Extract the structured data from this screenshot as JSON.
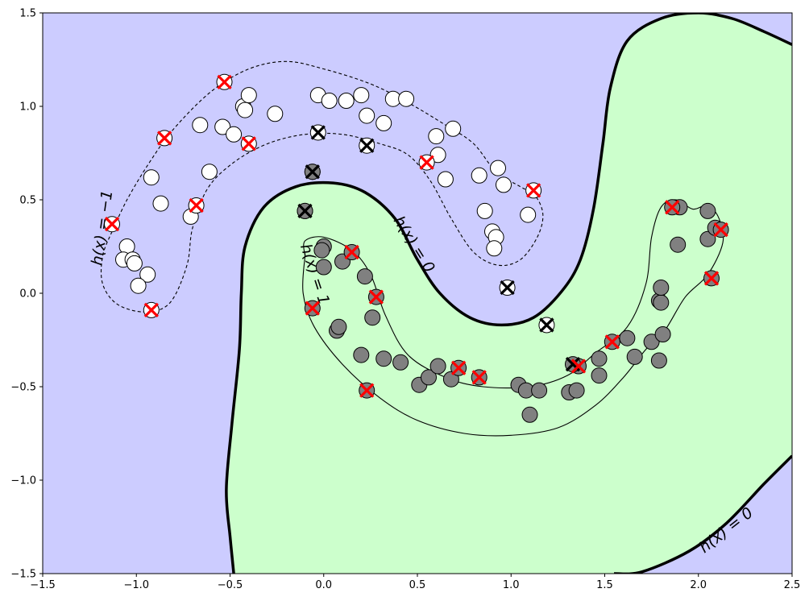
{
  "chart_data": {
    "type": "scatter",
    "title": "",
    "xlabel": "",
    "ylabel": "",
    "xlim": [
      -1.5,
      2.5
    ],
    "ylim": [
      -1.5,
      1.5
    ],
    "grid": false,
    "x_ticks": [
      "−1.5",
      "−1.0",
      "−0.5",
      "0.0",
      "0.5",
      "1.0",
      "1.5",
      "2.0",
      "2.5"
    ],
    "y_ticks": [
      "−1.5",
      "−1.0",
      "−0.5",
      "0.0",
      "0.5",
      "1.0",
      "1.5"
    ],
    "x_tick_values": [
      -1.5,
      -1.0,
      -0.5,
      0.0,
      0.5,
      1.0,
      1.5,
      2.0,
      2.5
    ],
    "y_tick_values": [
      -1.5,
      -1.0,
      -0.5,
      0.0,
      0.5,
      1.0,
      1.5
    ],
    "colors": {
      "region_negative": "#ccccff",
      "region_positive": "#ccffcc",
      "class_negative": "#ffffff",
      "class_positive": "#808080",
      "misclassified_marker": "#ff0000",
      "support_marker": "#000000"
    },
    "contour_labels": [
      {
        "text": "h(x) = 0",
        "x": 0.48,
        "y": 0.26,
        "rotation": 58
      },
      {
        "text": "h(x) = 0",
        "x": 2.15,
        "y": -1.27,
        "rotation": -38
      },
      {
        "text": "h(x) = −1",
        "x": -1.18,
        "y": 0.35,
        "rotation": -82
      },
      {
        "text": "h(x) = 1",
        "x": -0.05,
        "y": 0.1,
        "rotation": 72
      }
    ],
    "boundaries": {
      "decision_upper": [
        [
          -0.48,
          -1.5
        ],
        [
          -0.5,
          -1.3
        ],
        [
          -0.52,
          -1.05
        ],
        [
          -0.49,
          -0.7
        ],
        [
          -0.45,
          -0.3
        ],
        [
          -0.44,
          0.0
        ],
        [
          -0.42,
          0.25
        ],
        [
          -0.32,
          0.46
        ],
        [
          -0.15,
          0.57
        ],
        [
          0.05,
          0.59
        ],
        [
          0.22,
          0.54
        ],
        [
          0.38,
          0.4
        ],
        [
          0.5,
          0.18
        ],
        [
          0.62,
          0.0
        ],
        [
          0.78,
          -0.13
        ],
        [
          0.95,
          -0.17
        ],
        [
          1.12,
          -0.13
        ],
        [
          1.27,
          0.01
        ],
        [
          1.37,
          0.18
        ],
        [
          1.44,
          0.45
        ],
        [
          1.49,
          0.8
        ],
        [
          1.53,
          1.1
        ],
        [
          1.62,
          1.35
        ],
        [
          1.8,
          1.47
        ],
        [
          2.0,
          1.5
        ],
        [
          2.18,
          1.47
        ],
        [
          2.35,
          1.4
        ],
        [
          2.5,
          1.33
        ]
      ],
      "decision_lower": [
        [
          2.5,
          -0.87
        ],
        [
          2.35,
          -1.02
        ],
        [
          2.15,
          -1.23
        ],
        [
          1.95,
          -1.38
        ],
        [
          1.7,
          -1.49
        ],
        [
          1.55,
          -1.5
        ]
      ],
      "margin_neg": [
        [
          -1.13,
          0.33
        ],
        [
          -1.18,
          0.2
        ],
        [
          -1.18,
          0.05
        ],
        [
          -1.1,
          -0.06
        ],
        [
          -0.95,
          -0.1
        ],
        [
          -0.82,
          -0.05
        ],
        [
          -0.73,
          0.15
        ],
        [
          -0.7,
          0.35
        ],
        [
          -0.62,
          0.56
        ],
        [
          -0.48,
          0.7
        ],
        [
          -0.3,
          0.8
        ],
        [
          -0.1,
          0.85
        ],
        [
          0.1,
          0.85
        ],
        [
          0.3,
          0.8
        ],
        [
          0.45,
          0.74
        ],
        [
          0.57,
          0.6
        ],
        [
          0.68,
          0.4
        ],
        [
          0.8,
          0.22
        ],
        [
          0.93,
          0.15
        ],
        [
          1.05,
          0.18
        ],
        [
          1.14,
          0.3
        ],
        [
          1.17,
          0.42
        ],
        [
          1.13,
          0.52
        ],
        [
          1.05,
          0.57
        ],
        [
          0.92,
          0.65
        ],
        [
          0.8,
          0.8
        ],
        [
          0.65,
          0.9
        ],
        [
          0.45,
          1.02
        ],
        [
          0.25,
          1.12
        ],
        [
          0.0,
          1.2
        ],
        [
          -0.2,
          1.24
        ],
        [
          -0.4,
          1.2
        ],
        [
          -0.6,
          1.08
        ],
        [
          -0.8,
          0.88
        ],
        [
          -0.93,
          0.7
        ],
        [
          -1.05,
          0.5
        ],
        [
          -1.13,
          0.33
        ]
      ],
      "margin_pos": [
        [
          -0.1,
          0.2
        ],
        [
          -0.11,
          0.0
        ],
        [
          -0.05,
          -0.18
        ],
        [
          0.1,
          -0.38
        ],
        [
          0.3,
          -0.56
        ],
        [
          0.5,
          -0.68
        ],
        [
          0.75,
          -0.75
        ],
        [
          1.0,
          -0.76
        ],
        [
          1.25,
          -0.72
        ],
        [
          1.45,
          -0.6
        ],
        [
          1.6,
          -0.45
        ],
        [
          1.72,
          -0.3
        ],
        [
          1.82,
          -0.2
        ],
        [
          1.93,
          -0.02
        ],
        [
          2.05,
          0.1
        ],
        [
          2.13,
          0.27
        ],
        [
          2.11,
          0.4
        ],
        [
          2.05,
          0.47
        ],
        [
          1.97,
          0.45
        ],
        [
          1.88,
          0.5
        ],
        [
          1.8,
          0.46
        ],
        [
          1.75,
          0.3
        ],
        [
          1.72,
          0.05
        ],
        [
          1.62,
          -0.18
        ],
        [
          1.45,
          -0.32
        ],
        [
          1.3,
          -0.44
        ],
        [
          1.1,
          -0.5
        ],
        [
          0.85,
          -0.5
        ],
        [
          0.65,
          -0.45
        ],
        [
          0.45,
          -0.33
        ],
        [
          0.33,
          -0.12
        ],
        [
          0.25,
          0.1
        ],
        [
          0.15,
          0.23
        ],
        [
          0.0,
          0.3
        ],
        [
          -0.1,
          0.28
        ],
        [
          -0.1,
          0.2
        ]
      ]
    },
    "series": [
      {
        "role": "class_negative",
        "points": [
          [
            -1.13,
            0.37
          ],
          [
            -1.05,
            0.25
          ],
          [
            -1.07,
            0.18
          ],
          [
            -1.02,
            0.18
          ],
          [
            -1.01,
            0.16
          ],
          [
            -0.94,
            0.1
          ],
          [
            -0.99,
            0.04
          ],
          [
            -0.92,
            -0.09
          ],
          [
            -0.92,
            0.62
          ],
          [
            -0.87,
            0.48
          ],
          [
            -0.71,
            0.41
          ],
          [
            -0.68,
            0.47
          ],
          [
            -0.66,
            0.9
          ],
          [
            -0.61,
            0.65
          ],
          [
            -0.54,
            0.89
          ],
          [
            -0.48,
            0.85
          ],
          [
            -0.43,
            1.0
          ],
          [
            -0.42,
            0.98
          ],
          [
            -0.4,
            1.06
          ],
          [
            -0.26,
            0.96
          ],
          [
            -0.03,
            1.06
          ],
          [
            0.03,
            1.03
          ],
          [
            0.12,
            1.03
          ],
          [
            0.2,
            1.06
          ],
          [
            0.23,
            0.95
          ],
          [
            0.32,
            0.91
          ],
          [
            0.37,
            1.04
          ],
          [
            0.44,
            1.04
          ],
          [
            0.6,
            0.84
          ],
          [
            0.61,
            0.74
          ],
          [
            0.65,
            0.61
          ],
          [
            0.69,
            0.88
          ],
          [
            0.83,
            0.63
          ],
          [
            0.86,
            0.44
          ],
          [
            0.9,
            0.33
          ],
          [
            0.92,
            0.3
          ],
          [
            0.91,
            0.24
          ],
          [
            0.93,
            0.67
          ],
          [
            0.96,
            0.58
          ],
          [
            1.09,
            0.42
          ],
          [
            -0.85,
            0.83
          ],
          [
            -0.53,
            1.13
          ],
          [
            -0.4,
            0.8
          ],
          [
            0.55,
            0.7
          ],
          [
            1.12,
            0.55
          ]
        ]
      },
      {
        "role": "class_positive",
        "points": [
          [
            -0.06,
            0.65
          ],
          [
            -0.1,
            0.44
          ],
          [
            0.0,
            0.25
          ],
          [
            -0.01,
            0.23
          ],
          [
            0.0,
            0.14
          ],
          [
            0.1,
            0.17
          ],
          [
            0.22,
            0.09
          ],
          [
            0.07,
            -0.2
          ],
          [
            0.08,
            -0.18
          ],
          [
            0.2,
            -0.33
          ],
          [
            0.26,
            -0.13
          ],
          [
            0.32,
            -0.35
          ],
          [
            0.41,
            -0.37
          ],
          [
            0.51,
            -0.49
          ],
          [
            0.56,
            -0.45
          ],
          [
            0.61,
            -0.39
          ],
          [
            0.68,
            -0.46
          ],
          [
            1.04,
            -0.49
          ],
          [
            1.08,
            -0.52
          ],
          [
            1.1,
            -0.65
          ],
          [
            1.15,
            -0.52
          ],
          [
            1.31,
            -0.53
          ],
          [
            1.35,
            -0.52
          ],
          [
            1.47,
            -0.44
          ],
          [
            1.47,
            -0.35
          ],
          [
            1.62,
            -0.24
          ],
          [
            1.66,
            -0.34
          ],
          [
            1.75,
            -0.26
          ],
          [
            1.79,
            -0.36
          ],
          [
            1.79,
            -0.04
          ],
          [
            1.8,
            -0.05
          ],
          [
            1.8,
            0.03
          ],
          [
            1.81,
            -0.22
          ],
          [
            1.89,
            0.26
          ],
          [
            1.9,
            0.46
          ],
          [
            2.05,
            0.29
          ],
          [
            2.05,
            0.44
          ],
          [
            2.09,
            0.35
          ],
          [
            -0.06,
            -0.08
          ],
          [
            0.15,
            0.22
          ],
          [
            0.28,
            -0.02
          ],
          [
            0.23,
            -0.52
          ],
          [
            0.72,
            -0.4
          ],
          [
            0.83,
            -0.45
          ],
          [
            1.36,
            -0.39
          ],
          [
            1.54,
            -0.26
          ],
          [
            1.86,
            0.46
          ],
          [
            2.07,
            0.08
          ],
          [
            2.12,
            0.34
          ]
        ]
      }
    ],
    "markers": {
      "misclassified_x": [
        [
          -1.13,
          0.37
        ],
        [
          -0.92,
          -0.09
        ],
        [
          -0.85,
          0.83
        ],
        [
          -0.68,
          0.47
        ],
        [
          -0.53,
          1.13
        ],
        [
          -0.4,
          0.8
        ],
        [
          0.55,
          0.7
        ],
        [
          1.12,
          0.55
        ],
        [
          -0.06,
          -0.08
        ],
        [
          0.15,
          0.22
        ],
        [
          0.28,
          -0.02
        ],
        [
          0.23,
          -0.52
        ],
        [
          0.72,
          -0.4
        ],
        [
          0.83,
          -0.45
        ],
        [
          1.36,
          -0.39
        ],
        [
          1.54,
          -0.26
        ],
        [
          1.86,
          0.46
        ],
        [
          2.07,
          0.08
        ],
        [
          2.12,
          0.34
        ]
      ],
      "support_x": [
        [
          -0.03,
          0.86
        ],
        [
          0.23,
          0.79
        ],
        [
          -0.06,
          0.65
        ],
        [
          -0.1,
          0.44
        ],
        [
          0.98,
          0.03
        ],
        [
          1.19,
          -0.17
        ],
        [
          1.33,
          -0.38
        ]
      ],
      "support_face": [
        "#ffffff",
        "#ffffff",
        "#808080",
        "#808080",
        "#ffffff",
        "#ffffff",
        "#808080"
      ]
    }
  }
}
